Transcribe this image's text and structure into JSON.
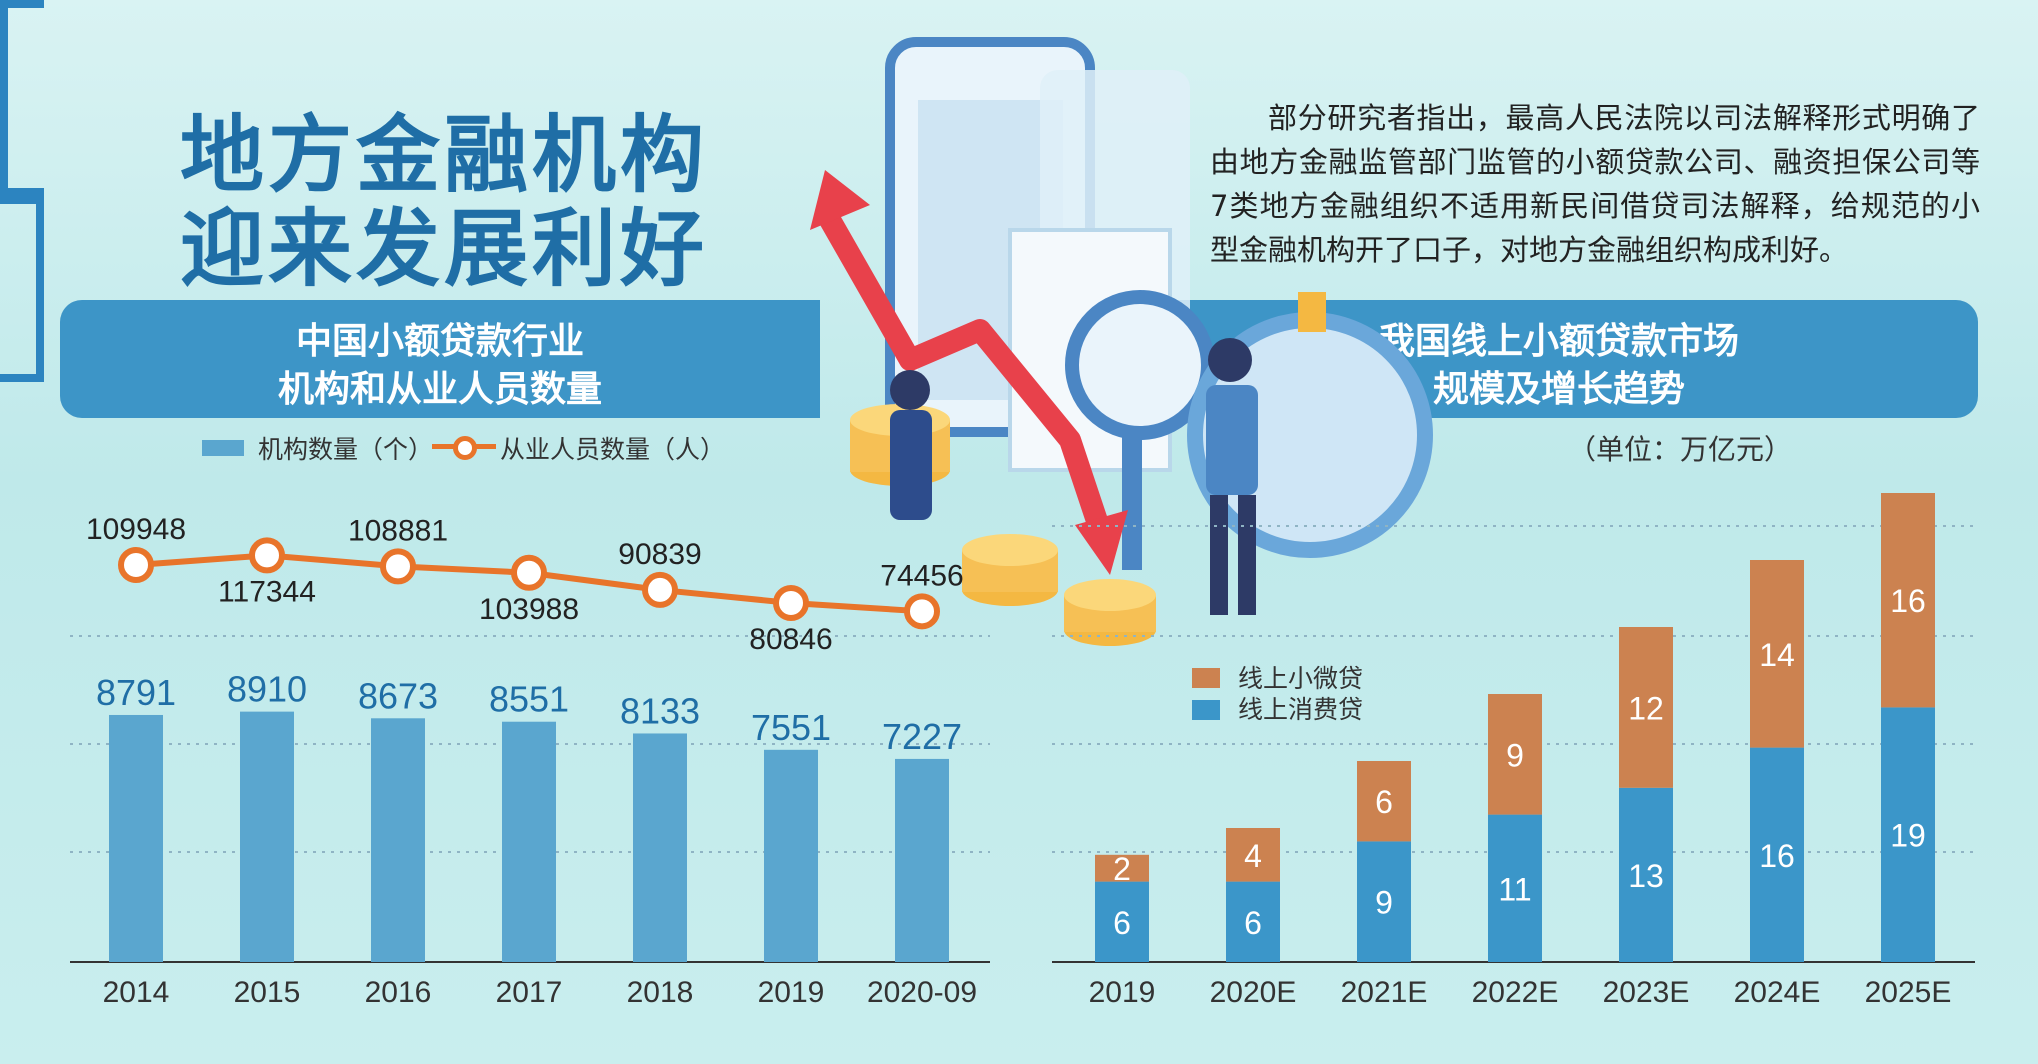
{
  "title": {
    "line1": "地方金融机构",
    "line2": "迎来发展利好"
  },
  "intro": "部分研究者指出，最高人民法院以司法解释形式明确了由地方金融监管部门监管的小额贷款公司、融资担保公司等7类地方金融组织不适用新民间借贷司法解释，给规范的小型金融机构开了口子，对地方金融组织构成利好。",
  "colors": {
    "bar_blue": "#5aa6cf",
    "line_orange": "#e8742a",
    "consumer": "#3b96c9",
    "micro": "#cc8250",
    "accent": "#2c84c0"
  },
  "chart_data": [
    {
      "type": "bar+line",
      "title_lines": [
        "中国小额贷款行业",
        "机构和从业人员数量"
      ],
      "categories": [
        "2014",
        "2015",
        "2016",
        "2017",
        "2018",
        "2019",
        "2020-09"
      ],
      "series": [
        {
          "name": "机构数量（个）",
          "type": "bar",
          "values": [
            8791,
            8910,
            8673,
            8551,
            8133,
            7551,
            7227
          ]
        },
        {
          "name": "从业人员数量（人）",
          "type": "line",
          "values": [
            109948,
            117344,
            108881,
            103988,
            90839,
            80846,
            74456
          ]
        }
      ],
      "grid": "dotted horizontal"
    },
    {
      "type": "stacked bar",
      "title_lines": [
        "我国线上小额贷款市场",
        "规模及增长趋势"
      ],
      "unit": "（单位：万亿元）",
      "categories": [
        "2019",
        "2020E",
        "2021E",
        "2022E",
        "2023E",
        "2024E",
        "2025E"
      ],
      "series": [
        {
          "name": "线上消费贷",
          "values": [
            6,
            6,
            9,
            11,
            13,
            16,
            19
          ]
        },
        {
          "name": "线上小微贷",
          "values": [
            2,
            4,
            6,
            9,
            12,
            14,
            16
          ]
        }
      ],
      "legend": "top-left",
      "grid": "dotted horizontal"
    }
  ]
}
